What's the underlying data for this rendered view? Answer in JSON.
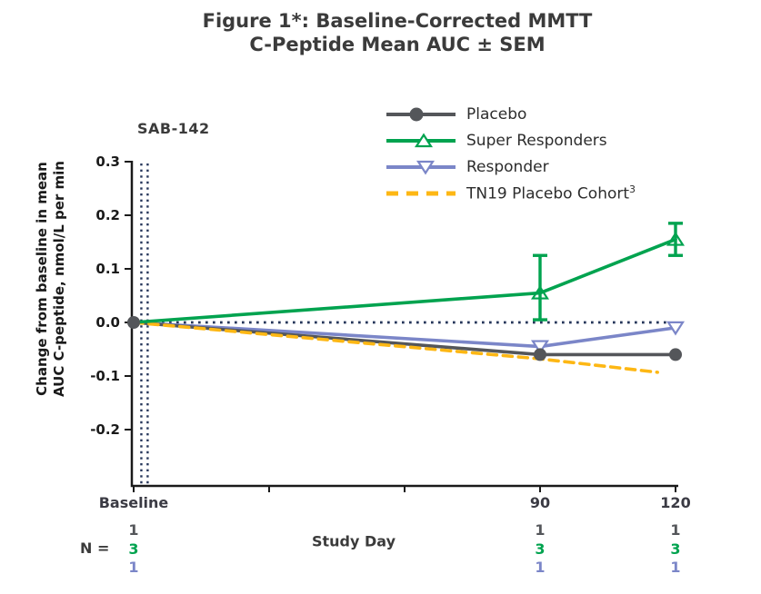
{
  "title": {
    "line1": "Figure 1*: Baseline-Corrected MMTT",
    "line2": "C-Peptide Mean AUC ± SEM"
  },
  "legend": [
    {
      "label": "Placebo",
      "superscript": ""
    },
    {
      "label": "Super Responders",
      "superscript": ""
    },
    {
      "label": "Responder",
      "superscript": ""
    },
    {
      "label": "TN19 Placebo Cohort",
      "superscript": "3"
    }
  ],
  "chart_data": {
    "type": "line",
    "title": "Figure 1*: Baseline-Corrected MMTT C-Peptide Mean AUC ± SEM",
    "xlabel": "Study Day",
    "ylabel": "Change from baseline in mean AUC C-peptide, nmol/L per min",
    "ylabel_lines": [
      "Change from baseline in mean",
      "AUC C-peptide, nmol/L per min"
    ],
    "ylim": [
      -0.3,
      0.3
    ],
    "x_domain_days": [
      0,
      120
    ],
    "grid": false,
    "legend_position": "top-right",
    "y_ticks": [
      {
        "value": 0.3,
        "label": "0.3"
      },
      {
        "value": 0.2,
        "label": "0.2"
      },
      {
        "value": 0.1,
        "label": "0.1"
      },
      {
        "value": 0.0,
        "label": "0.0"
      },
      {
        "value": -0.1,
        "label": "-0.1"
      },
      {
        "value": -0.2,
        "label": "-0.2"
      }
    ],
    "x_ticks": [
      {
        "day": 0,
        "label": "Baseline"
      },
      {
        "day": 30,
        "label": ""
      },
      {
        "day": 60,
        "label": ""
      },
      {
        "day": 90,
        "label": "90"
      },
      {
        "day": 120,
        "label": "120"
      }
    ],
    "zero_reference_line": {
      "value": 0.0,
      "style": "dotted",
      "color": "#26365A"
    },
    "annotation": {
      "label": "SAB-142",
      "style": "double-dotted-vertical-lines",
      "days": [
        1.7,
        3.1
      ],
      "color": "#26365A"
    },
    "series": [
      {
        "name": "Placebo",
        "color": "#54565A",
        "line": "solid",
        "marker": "circle-filled",
        "x": [
          0,
          90,
          120
        ],
        "y": [
          0.0,
          -0.06,
          -0.06
        ],
        "marker_points": [
          0,
          1,
          2
        ]
      },
      {
        "name": "Super Responders",
        "color": "#00A34F",
        "line": "solid",
        "marker": "triangle-up-open",
        "x": [
          0,
          90,
          120
        ],
        "y": [
          0.0,
          0.055,
          0.155
        ],
        "err_low": [
          null,
          0.005,
          0.125
        ],
        "err_high": [
          null,
          0.125,
          0.185
        ],
        "marker_points": [
          1,
          2
        ]
      },
      {
        "name": "Responder",
        "color": "#7B86C8",
        "line": "solid",
        "marker": "triangle-down-open",
        "x": [
          0,
          90,
          120
        ],
        "y": [
          0.0,
          -0.045,
          -0.01
        ],
        "marker_points": [
          1,
          2
        ]
      },
      {
        "name": "TN19 Placebo Cohort",
        "color": "#FDB714",
        "line": "dashed",
        "marker": "none",
        "x": [
          0,
          90,
          116
        ],
        "y": [
          0.0,
          -0.068,
          -0.093
        ],
        "marker_points": []
      }
    ],
    "draw_order": [
      2,
      0,
      3,
      1
    ],
    "n_table": {
      "label": "N =",
      "row_colors": [
        "#54565A",
        "#00A34F",
        "#7B86C8"
      ],
      "columns": [
        {
          "day": 0,
          "values": [
            "1",
            "3",
            "1"
          ]
        },
        {
          "day": 90,
          "values": [
            "1",
            "3",
            "1"
          ]
        },
        {
          "day": 120,
          "values": [
            "1",
            "3",
            "1"
          ]
        }
      ]
    },
    "axis_color": "#1a1a1a"
  }
}
